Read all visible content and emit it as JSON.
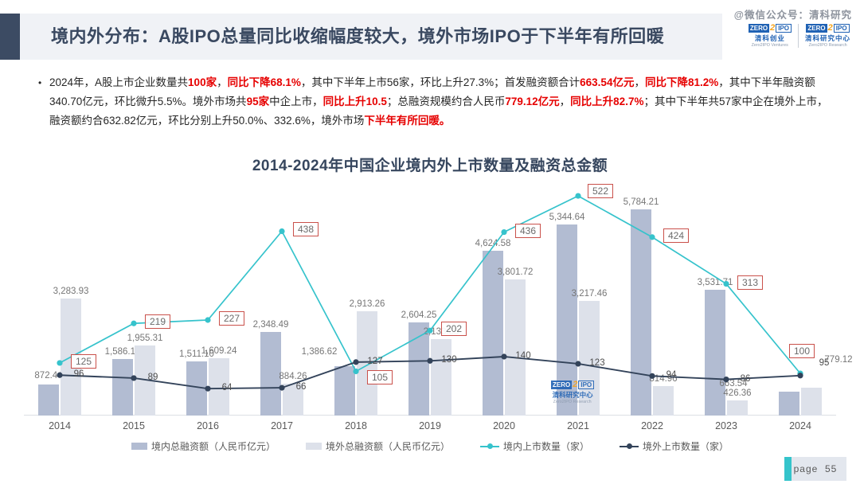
{
  "theme": {
    "navy": "#3c4b63",
    "red": "#e60000",
    "band_bg": "#f0f2f6",
    "badge_teal": "#35c4cb"
  },
  "watermark": {
    "text": "@微信公众号：清科研究"
  },
  "logos": {
    "items": [
      {
        "zero": "ZERO",
        "two": "2",
        "ipo": "IPO",
        "cn": "清科创业",
        "en": "Zero2IPO Ventures"
      },
      {
        "zero": "ZERO",
        "two": "2",
        "ipo": "IPO",
        "cn": "清科研究中心",
        "en": "Zero2IPO Research"
      }
    ]
  },
  "header": {
    "title": "境内外分布：A股IPO总量同比收缩幅度较大，境外市场IPO于下半年有所回暖"
  },
  "intro": {
    "bullet": "•",
    "segments": [
      {
        "t": "2024年，A股上市企业数量共",
        "red": false
      },
      {
        "t": "100家",
        "red": true
      },
      {
        "t": "，",
        "red": false
      },
      {
        "t": "同比下降68.1%",
        "red": true
      },
      {
        "t": "，其中下半年上市56家，环比上升27.3%；首发融资额合计",
        "red": false
      },
      {
        "t": "663.54亿元",
        "red": true
      },
      {
        "t": "，",
        "red": false
      },
      {
        "t": "同比下降81.2%",
        "red": true
      },
      {
        "t": "，其中下半年融资额340.70亿元，环比微升5.5%。境外市场共",
        "red": false
      },
      {
        "t": "95家",
        "red": true
      },
      {
        "t": "中企上市，",
        "red": false
      },
      {
        "t": "同比上升10.5",
        "red": true
      },
      {
        "t": "；总融资规模约合人民币",
        "red": false
      },
      {
        "t": "779.12亿元",
        "red": true
      },
      {
        "t": "，",
        "red": false
      },
      {
        "t": "同比上升82.7%",
        "red": true
      },
      {
        "t": "；其中下半年共57家中企在境外上市，融资额约合632.82亿元，环比分别上升50.0%、332.6%，境外市场",
        "red": false
      },
      {
        "t": "下半年有所回暖。",
        "red": true
      }
    ]
  },
  "chart_data": {
    "type": "bar+line",
    "title": "2014-2024年中国企业境内外上市数量及融资总金额",
    "categories": [
      "2014",
      "2015",
      "2016",
      "2017",
      "2018",
      "2019",
      "2020",
      "2021",
      "2022",
      "2023",
      "2024"
    ],
    "series": [
      {
        "name": "境内总融资额（人民币亿元）",
        "type": "bar",
        "values": [
          872.44,
          1586.14,
          1511.1,
          2348.49,
          1386.62,
          2604.25,
          4624.58,
          5344.64,
          5784.21,
          3531.71,
          663.54
        ]
      },
      {
        "name": "境外总融资额（人民币亿元）",
        "type": "bar",
        "values": [
          3283.93,
          1955.31,
          1609.24,
          884.26,
          2913.26,
          2133.63,
          3801.72,
          3217.46,
          814.96,
          426.36,
          779.12
        ]
      },
      {
        "name": "境内上市数量（家）",
        "type": "line",
        "values": [
          125,
          219,
          227,
          438,
          105,
          202,
          436,
          522,
          424,
          313,
          100
        ]
      },
      {
        "name": "境外上市数量（家）",
        "type": "line",
        "values": [
          96,
          89,
          64,
          66,
          127,
          130,
          140,
          123,
          94,
          86,
          95
        ]
      }
    ],
    "colors": {
      "domestic_bar": "#b2bcd2",
      "overseas_bar": "#dde1ea",
      "domestic_line": "#36c3cc",
      "overseas_line": "#33435a",
      "label_box_border": "#c9504a",
      "axis_line": "#dcdfe4"
    },
    "bar_axis_max": 6600,
    "line_axis_max": 560,
    "grid": false,
    "legend_position": "bottom",
    "value_axis_visible": false
  },
  "center_watermark": {
    "zero": "ZERO",
    "two": "2",
    "ipo": "IPO",
    "cn": "清科研究中心",
    "en": "Zero2IPO Research"
  },
  "footer": {
    "page_label": "page",
    "page_number": "55"
  }
}
